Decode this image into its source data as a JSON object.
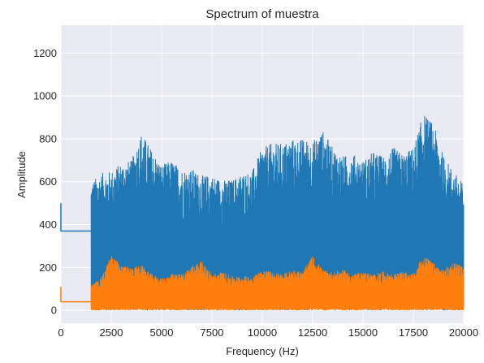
{
  "chart_data": {
    "type": "line",
    "title": "Spectrum of muestra",
    "xlabel": "Frequency (Hz)",
    "ylabel": "Amplitude",
    "xlim": [
      0,
      20000
    ],
    "ylim": [
      -60,
      1330
    ],
    "xticks": [
      0,
      2500,
      5000,
      7500,
      10000,
      12500,
      15000,
      17500,
      20000
    ],
    "yticks": [
      0,
      200,
      400,
      600,
      800,
      1000,
      1200
    ],
    "grid": true,
    "background": "#eaeaf2",
    "series": [
      {
        "color": "#1f77b4",
        "values_description_note": "",
        "start": {
          "x": [
            0,
            0,
            1500
          ],
          "y": [
            500,
            370,
            370
          ]
        },
        "envelope_x": [
          1500,
          2000,
          2500,
          3000,
          3500,
          4000,
          4500,
          5000,
          5500,
          6000,
          6500,
          7000,
          7500,
          8000,
          8500,
          9000,
          9500,
          10000,
          10500,
          11000,
          11500,
          12000,
          12500,
          13000,
          13500,
          14000,
          14500,
          15000,
          15500,
          16000,
          16500,
          17000,
          17500,
          18000,
          18500,
          19000,
          19500,
          20000
        ],
        "envelope_y": [
          600,
          640,
          650,
          690,
          700,
          830,
          750,
          680,
          700,
          660,
          660,
          630,
          630,
          610,
          610,
          640,
          650,
          760,
          780,
          780,
          800,
          800,
          790,
          840,
          760,
          720,
          730,
          700,
          740,
          720,
          760,
          730,
          760,
          920,
          870,
          720,
          650,
          590
        ],
        "floor": 0
      },
      {
        "color": "#ff7f0e",
        "start": {
          "x": [
            0,
            0,
            1500
          ],
          "y": [
            110,
            40,
            40
          ]
        },
        "envelope_x": [
          1500,
          2000,
          2500,
          3000,
          3500,
          4000,
          4500,
          5000,
          5500,
          6000,
          6500,
          7000,
          7500,
          8000,
          8500,
          9000,
          9500,
          10000,
          10500,
          11000,
          11500,
          12000,
          12500,
          13000,
          13500,
          14000,
          14500,
          15000,
          15500,
          16000,
          16500,
          17000,
          17500,
          18000,
          18500,
          19000,
          19500,
          20000
        ],
        "envelope_y": [
          120,
          150,
          260,
          210,
          200,
          210,
          170,
          150,
          170,
          170,
          210,
          230,
          170,
          180,
          160,
          160,
          160,
          190,
          180,
          170,
          190,
          180,
          255,
          190,
          180,
          190,
          170,
          180,
          170,
          180,
          170,
          180,
          170,
          260,
          220,
          190,
          230,
          200
        ],
        "floor": 0
      }
    ]
  }
}
